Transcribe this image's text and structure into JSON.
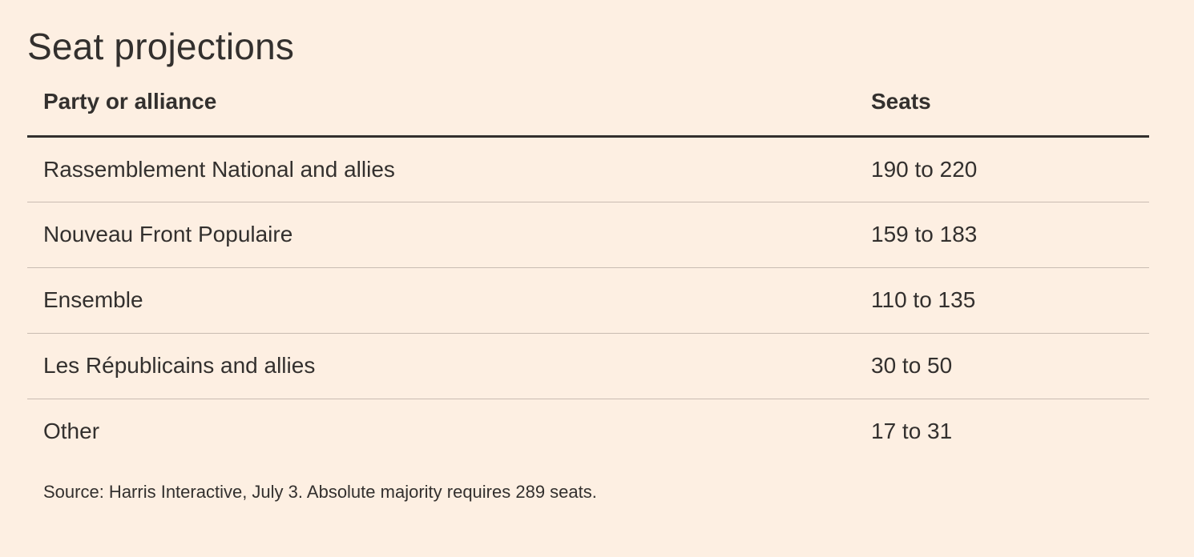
{
  "title": "Seat projections",
  "table": {
    "headers": [
      "Party or alliance",
      "Seats"
    ],
    "rows": [
      [
        "Rassemblement National and allies",
        "190 to 220"
      ],
      [
        "Nouveau Front Populaire",
        "159 to 183"
      ],
      [
        "Ensemble",
        "110 to 135"
      ],
      [
        "Les Républicains and allies",
        "30 to 50"
      ],
      [
        "Other",
        "17 to 31"
      ]
    ]
  },
  "source": "Source: Harris Interactive, July 3. Absolute majority requires 289 seats.",
  "colors": {
    "background": "#fdefe2",
    "text": "#33302e",
    "row_divider": "#c9bcb2"
  }
}
